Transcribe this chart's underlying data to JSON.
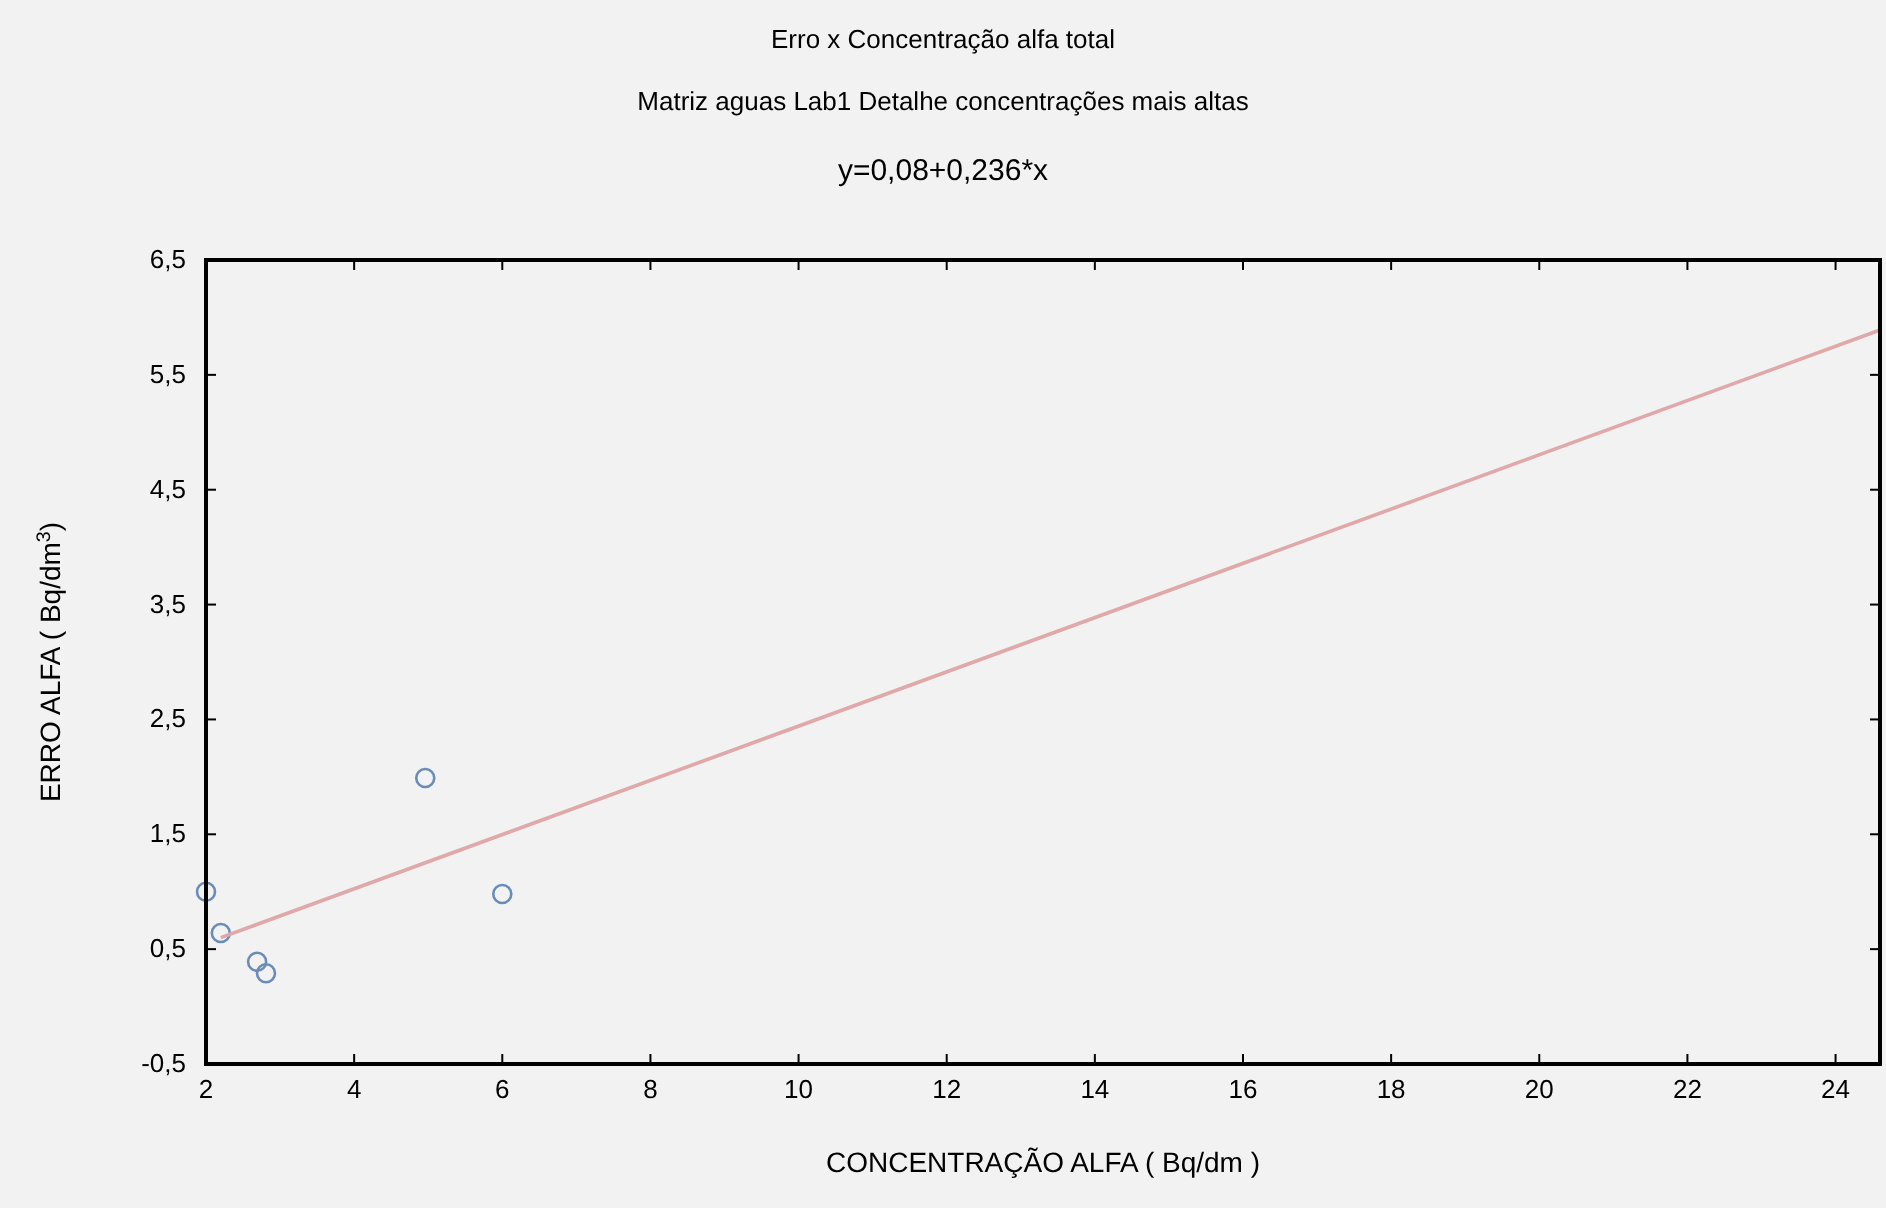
{
  "chart_data": {
    "type": "scatter",
    "title": "Erro x Concentração alfa total",
    "subtitle": "Matriz aguas  Lab1  Detalhe concentrações mais altas",
    "annotations": [
      "y=0,08+0,236*x"
    ],
    "xlabel": "CONCENTRAÇÃO ALFA ( Bq/dm )",
    "ylabel": "ERRO ALFA ( Bq/dm$^{3}$)",
    "xlim": [
      2,
      24.6
    ],
    "ylim": [
      -0.5,
      6.5
    ],
    "xticks": [
      2,
      4,
      6,
      8,
      10,
      12,
      14,
      16,
      18,
      20,
      22,
      24
    ],
    "yticks": [
      {
        "value": -0.5,
        "label": "-0,5"
      },
      {
        "value": 0.5,
        "label": "0,5"
      },
      {
        "value": 1.5,
        "label": "1,5"
      },
      {
        "value": 2.5,
        "label": "2,5"
      },
      {
        "value": 3.5,
        "label": "3,5"
      },
      {
        "value": 4.5,
        "label": "4,5"
      },
      {
        "value": 5.5,
        "label": "5,5"
      },
      {
        "value": 6.5,
        "label": "6,5"
      }
    ],
    "grid": false,
    "series": [
      {
        "marker": "circle",
        "color": "#6a8cb8",
        "x": [
          2.0,
          2.2,
          2.69,
          2.81,
          4.96,
          6.0
        ],
        "values": [
          1.0,
          0.64,
          0.39,
          0.29,
          1.99,
          0.98
        ]
      },
      {
        "type": "line",
        "color": "#e0a8a8",
        "x": [
          2.2,
          24.6
        ],
        "values": [
          0.6,
          5.89
        ]
      }
    ]
  }
}
